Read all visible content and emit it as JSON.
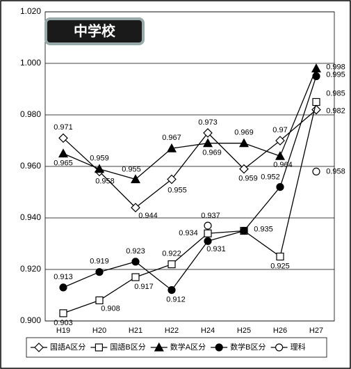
{
  "chart_data": {
    "type": "line",
    "title": "中学校",
    "categories": [
      "H19",
      "H20",
      "H21",
      "H22",
      "H24",
      "H25",
      "H26",
      "H27"
    ],
    "ylim": [
      0.9,
      1.02
    ],
    "yticks": [
      {
        "value": 0.9,
        "label": "0.900"
      },
      {
        "value": 0.92,
        "label": "0.920"
      },
      {
        "value": 0.94,
        "label": "0.940"
      },
      {
        "value": 0.96,
        "label": "0.960"
      },
      {
        "value": 0.98,
        "label": "0.980"
      },
      {
        "value": 1.0,
        "label": "1.000"
      },
      {
        "value": 1.02,
        "label": "1.020"
      }
    ],
    "grid": true,
    "legend": "bottom",
    "series": [
      {
        "name": "国語A区分",
        "color": "#000000",
        "marker": "diamond-open",
        "values": [
          0.971,
          0.958,
          0.944,
          0.955,
          0.973,
          0.959,
          0.97,
          0.982
        ]
      },
      {
        "name": "国語B区分",
        "color": "#000000",
        "marker": "square-open",
        "values": [
          0.903,
          0.908,
          0.917,
          0.922,
          0.934,
          0.935,
          0.925,
          0.985
        ]
      },
      {
        "name": "数学A区分",
        "color": "#000000",
        "marker": "triangle-filled",
        "values": [
          0.965,
          0.959,
          0.955,
          0.967,
          0.969,
          0.969,
          0.964,
          0.998
        ]
      },
      {
        "name": "数学B区分",
        "color": "#000000",
        "marker": "circle-filled",
        "values": [
          0.913,
          0.919,
          0.923,
          0.912,
          0.931,
          0.935,
          0.952,
          0.995
        ]
      },
      {
        "name": "理科",
        "color": "#000000",
        "marker": "circle-open",
        "values": [
          null,
          null,
          null,
          null,
          0.937,
          null,
          null,
          0.958
        ]
      }
    ]
  }
}
